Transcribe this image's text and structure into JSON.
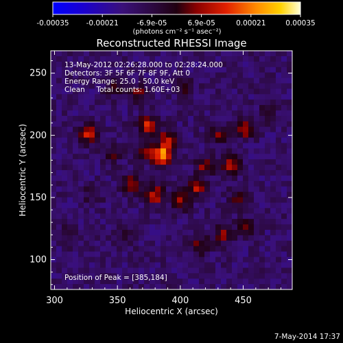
{
  "chart_data": {
    "type": "heatmap",
    "title": "Reconstructed RHESSI Image",
    "xlabel": "Heliocentric X (arcsec)",
    "ylabel": "Heliocentric Y (arcsec)",
    "xlim": [
      297,
      489
    ],
    "ylim": [
      76,
      268
    ],
    "x_ticks": [
      300,
      350,
      400,
      450
    ],
    "y_ticks": [
      100,
      150,
      200,
      250
    ],
    "colorbar": {
      "ticks": [
        "-0.00035",
        "-0.00021",
        "-6.9e-05",
        "6.9e-05",
        "0.00021",
        "0.00035"
      ],
      "unit_label": "(photons cm⁻² s⁻¹ asec⁻²)",
      "range": [
        -0.00035,
        0.00035
      ]
    },
    "annotations": [
      "13-May-2012 02:26:28.000 to 02:28:24.000",
      "Detectors: 3F 5F 6F 7F 8F 9F, Att 0",
      "Energy Range: 25.0 - 50.0 keV",
      "Clean     Total counts: 1.60E+03"
    ],
    "peak_label": "Position of Peak = [385,184]",
    "peak": [
      385,
      184
    ],
    "sources": [
      {
        "x": 385,
        "y": 184,
        "amp": 0.00035
      },
      {
        "x": 390,
        "y": 196,
        "amp": 0.00022
      },
      {
        "x": 374,
        "y": 208,
        "amp": 0.00026
      },
      {
        "x": 371,
        "y": 187,
        "amp": 0.00016
      },
      {
        "x": 328,
        "y": 201,
        "amp": 0.00025
      },
      {
        "x": 346,
        "y": 186,
        "amp": 0.00012
      },
      {
        "x": 362,
        "y": 160,
        "amp": 0.00021
      },
      {
        "x": 380,
        "y": 152,
        "amp": 0.00023
      },
      {
        "x": 400,
        "y": 147,
        "amp": 0.00019
      },
      {
        "x": 413,
        "y": 158,
        "amp": 0.0002
      },
      {
        "x": 420,
        "y": 176,
        "amp": 0.00018
      },
      {
        "x": 440,
        "y": 176,
        "amp": 0.00022
      },
      {
        "x": 452,
        "y": 205,
        "amp": 0.0002
      },
      {
        "x": 430,
        "y": 200,
        "amp": 0.00014
      },
      {
        "x": 447,
        "y": 150,
        "amp": 0.00014
      },
      {
        "x": 415,
        "y": 112,
        "amp": 0.00017
      },
      {
        "x": 435,
        "y": 120,
        "amp": 0.00016
      },
      {
        "x": 452,
        "y": 126,
        "amp": 0.00014
      },
      {
        "x": 330,
        "y": 152,
        "amp": 9e-05
      },
      {
        "x": 347,
        "y": 238,
        "amp": 0.00011
      },
      {
        "x": 366,
        "y": 233,
        "amp": 0.00015
      },
      {
        "x": 404,
        "y": 238,
        "amp": 0.0001
      },
      {
        "x": 312,
        "y": 120,
        "amp": 8e-05
      },
      {
        "x": 470,
        "y": 218,
        "amp": 9e-05
      },
      {
        "x": 356,
        "y": 118,
        "amp": 7e-05
      }
    ]
  },
  "timestamp": "7-May-2014 17:37"
}
